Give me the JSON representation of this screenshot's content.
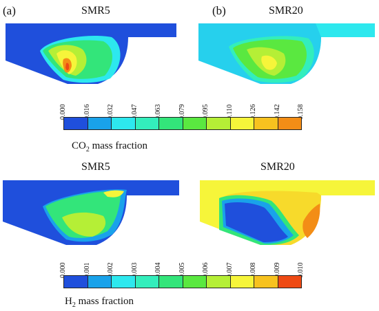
{
  "panels": {
    "a": "(a)",
    "b": "(b)"
  },
  "top": {
    "left_title": "SMR5",
    "right_title": "SMR20",
    "colorbar": {
      "ticks": [
        "0.000",
        "0.016",
        "0.032",
        "0.047",
        "0.063",
        "0.079",
        "0.095",
        "0.110",
        "0.126",
        "0.142",
        "0.158"
      ],
      "label_main": "CO",
      "label_sub": "2",
      "label_rest": " mass fraction"
    }
  },
  "bottom": {
    "left_title": "SMR5",
    "right_title": "SMR20",
    "colorbar": {
      "ticks": [
        "0.000",
        "0.001",
        "0.002",
        "0.003",
        "0.004",
        "0.005",
        "0.006",
        "0.007",
        "0.008",
        "0.009",
        "0.010"
      ],
      "label_main": "H",
      "label_sub": "2",
      "label_rest": " mass fraction"
    }
  },
  "colors": [
    "#1f4fdc",
    "#19a2ea",
    "#2de8ee",
    "#33eebc",
    "#33e57a",
    "#5ae840",
    "#b5ef36",
    "#f6f53a",
    "#f7c21f",
    "#f38d16",
    "#ee4a14"
  ]
}
